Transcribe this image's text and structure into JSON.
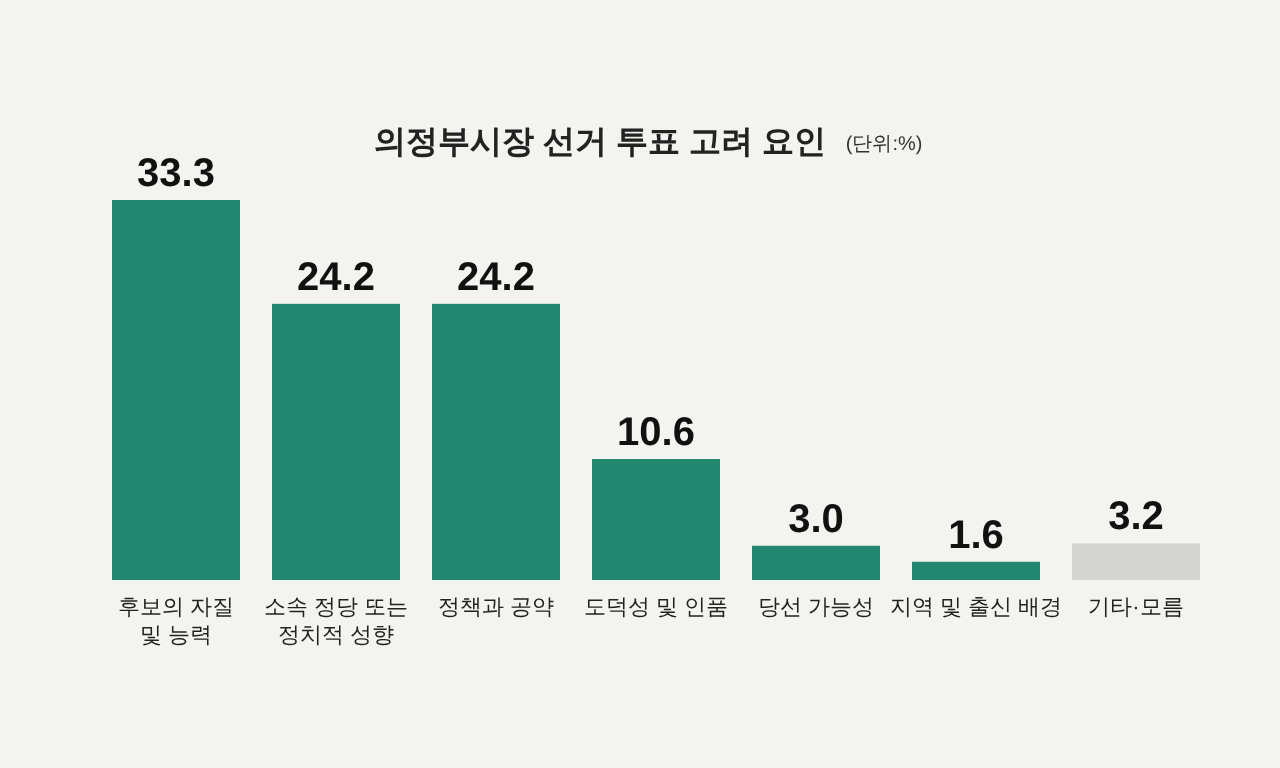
{
  "chart_data": {
    "type": "bar",
    "title": "의정부시장 선거 투표 고려 요인",
    "subtitle": "(단위:%)",
    "categories": [
      "후보의 자질\n및 능력",
      "소속 정당 또는\n정치적 성향",
      "정책과 공약",
      "도덕성 및 인품",
      "당선 가능성",
      "지역 및 출신 배경",
      "기타·모름"
    ],
    "values": [
      33.3,
      24.2,
      24.2,
      10.6,
      3.0,
      1.6,
      3.2
    ],
    "value_labels": [
      "33.3",
      "24.2",
      "24.2",
      "10.6",
      "3.0",
      "1.6",
      "3.2"
    ],
    "colors": [
      "#23866f",
      "#23866f",
      "#23866f",
      "#23866f",
      "#23866f",
      "#23866f",
      "#d4d5d0"
    ],
    "grid": false
  }
}
